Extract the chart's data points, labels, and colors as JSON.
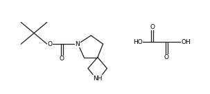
{
  "background": "#ffffff",
  "line_color": "#1a1a1a",
  "line_width": 0.9,
  "font_size": 6.5,
  "figsize": [
    3.03,
    1.37
  ],
  "dpi": 100,
  "xlim": [
    0,
    10.5
  ],
  "ylim": [
    0,
    3.6
  ]
}
